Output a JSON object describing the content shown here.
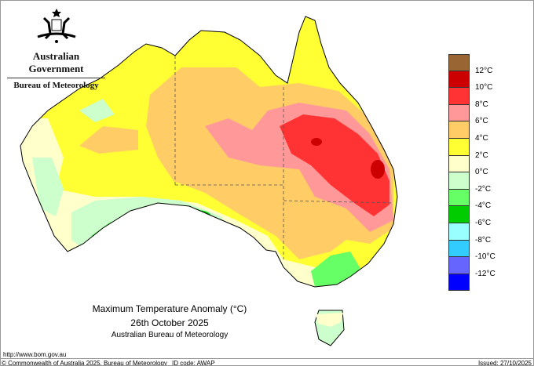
{
  "header": {
    "government": "Australian Government",
    "agency": "Bureau of Meteorology",
    "crest_icon": "commonwealth-coat-of-arms"
  },
  "map": {
    "title": "Maximum Temperature Anomaly (°C)",
    "date": "26th October 2025",
    "source": "Australian Bureau of Meteorology"
  },
  "legend": {
    "colors": [
      "#996633",
      "#cc0000",
      "#ff3333",
      "#ff9999",
      "#ffcc66",
      "#ffff33",
      "#ffffcc",
      "#ccffcc",
      "#66ff66",
      "#00cc00",
      "#99ffff",
      "#33ccff",
      "#6666ff",
      "#0000ff"
    ],
    "labels": [
      "12°C",
      "10°C",
      "8°C",
      "6°C",
      "4°C",
      "2°C",
      "0°C",
      "-2°C",
      "-4°C",
      "-6°C",
      "-8°C",
      "-10°C",
      "-12°C"
    ]
  },
  "footer": {
    "url": "http://www.bom.gov.au",
    "copyright": "© Commonwealth of Australia 2025, Bureau of Meteorology",
    "id_code": "ID code: AWAP",
    "issued": "Issued: 27/10/2025"
  }
}
